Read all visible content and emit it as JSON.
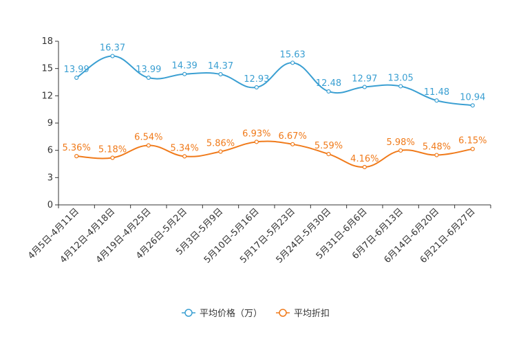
{
  "chart_data": {
    "type": "line",
    "title": "",
    "xlabel": "",
    "ylabel": "",
    "ylim": [
      0,
      18
    ],
    "yticks": [
      0,
      3,
      6,
      9,
      12,
      15,
      18
    ],
    "categories": [
      "4月5日-4月11日",
      "4月12日-4月18日",
      "4月19日-4月25日",
      "4月26日-5月2日",
      "5月3日-5月9日",
      "5月10日-5月16日",
      "5月17日-5月23日",
      "5月24日-5月30日",
      "5月31日-6月6日",
      "6月7日-6月13日",
      "6月14日-6月20日",
      "6月21日-6月27日"
    ],
    "series": [
      {
        "name": "平均价格（万）",
        "color": "#3a9fd2",
        "values": [
          13.99,
          16.37,
          13.99,
          14.39,
          14.37,
          12.93,
          15.63,
          12.48,
          12.97,
          13.05,
          11.48,
          10.94
        ],
        "labels": [
          "13.99",
          "16.37",
          "13.99",
          "14.39",
          "14.37",
          "12.93",
          "15.63",
          "12.48",
          "12.97",
          "13.05",
          "11.48",
          "10.94"
        ]
      },
      {
        "name": "平均折扣",
        "color": "#f07a1a",
        "values": [
          5.36,
          5.18,
          6.54,
          5.34,
          5.86,
          6.93,
          6.67,
          5.59,
          4.16,
          5.98,
          5.48,
          6.15
        ],
        "labels": [
          "5.36%",
          "5.18%",
          "6.54%",
          "5.34%",
          "5.86%",
          "6.93%",
          "6.67%",
          "5.59%",
          "4.16%",
          "5.98%",
          "5.48%",
          "6.15%"
        ]
      }
    ],
    "legend_position": "bottom-center",
    "grid": false
  }
}
